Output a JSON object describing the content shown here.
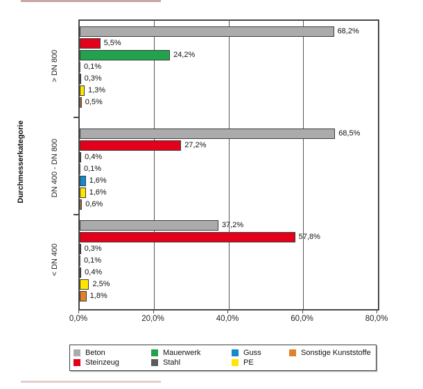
{
  "page": {
    "background": "#ffffff"
  },
  "artifacts": {
    "top_left_line_color": "#8a3a3a",
    "bottom_left_line_color": "#8a3a3a"
  },
  "chart_data": {
    "type": "bar",
    "orientation": "horizontal",
    "title": "",
    "xlabel": "",
    "ylabel": "Durchmesserkategorie",
    "xlim": [
      0,
      80
    ],
    "x_ticks": [
      "0,0%",
      "20,0%",
      "40,0%",
      "60,0%",
      "80,0%"
    ],
    "x_tick_values": [
      0,
      20,
      40,
      60,
      80
    ],
    "grid": "vertical-only",
    "categories": [
      "> DN 800",
      "DN 400 - DN 800",
      "< DN 400"
    ],
    "series": [
      {
        "name": "Beton",
        "color": "#ababab",
        "values": [
          68.2,
          68.5,
          37.2
        ],
        "labels": [
          "68,2%",
          "68,5%",
          "37,2%"
        ]
      },
      {
        "name": "Steinzeug",
        "color": "#e2001a",
        "values": [
          5.5,
          27.2,
          57.8
        ],
        "labels": [
          "5,5%",
          "27,2%",
          "57,8%"
        ]
      },
      {
        "name": "Mauerwerk",
        "color": "#23a24d",
        "values": [
          24.2,
          0.4,
          0.3
        ],
        "labels": [
          "24,2%",
          "0,4%",
          "0,3%"
        ]
      },
      {
        "name": "Stahl",
        "color": "#5b5b5b",
        "values": [
          0.1,
          0.1,
          0.1
        ],
        "labels": [
          "0,1%",
          "0,1%",
          "0,1%"
        ]
      },
      {
        "name": "Guss",
        "color": "#1489cc",
        "values": [
          0.3,
          1.6,
          0.4
        ],
        "labels": [
          "0,3%",
          "1,6%",
          "0,4%"
        ]
      },
      {
        "name": "PE",
        "color": "#ffe500",
        "values": [
          1.3,
          1.6,
          2.5
        ],
        "labels": [
          "1,3%",
          "1,6%",
          "2,5%"
        ]
      },
      {
        "name": "Sonstige Kunststoffe",
        "color": "#e0812c",
        "values": [
          0.5,
          0.6,
          1.8
        ],
        "labels": [
          "0,5%",
          "0,6%",
          "1,8%"
        ]
      }
    ],
    "legend_position": "bottom",
    "legend_columns": [
      [
        0,
        1
      ],
      [
        2,
        3
      ],
      [
        4,
        5
      ],
      [
        6
      ]
    ]
  }
}
